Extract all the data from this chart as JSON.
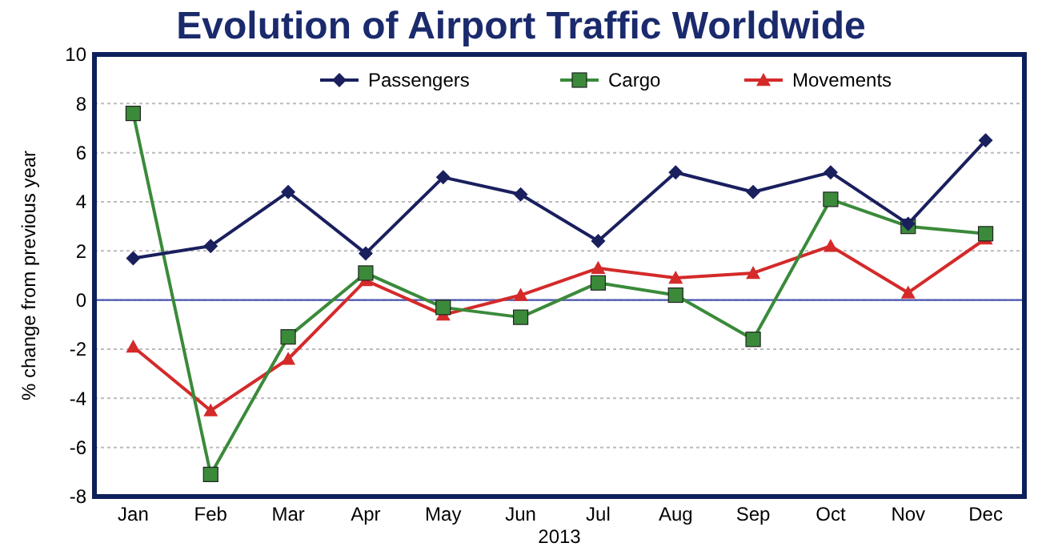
{
  "chart_data": {
    "type": "line",
    "title": "Evolution of Airport Traffic Worldwide",
    "xlabel": "2013",
    "ylabel": "% change from previous year",
    "categories": [
      "Jan",
      "Feb",
      "Mar",
      "Apr",
      "May",
      "Jun",
      "Jul",
      "Aug",
      "Sep",
      "Oct",
      "Nov",
      "Dec"
    ],
    "series": [
      {
        "name": "Passengers",
        "color": "#1a1f5e",
        "marker": "diamond",
        "values": [
          1.7,
          2.2,
          4.4,
          1.9,
          5.0,
          4.3,
          2.4,
          5.2,
          4.4,
          5.2,
          3.1,
          6.5
        ]
      },
      {
        "name": "Cargo",
        "color": "#3a8a3a",
        "marker": "square",
        "values": [
          7.6,
          -7.1,
          -1.5,
          1.1,
          -0.3,
          -0.7,
          0.7,
          0.2,
          -1.6,
          4.1,
          3.0,
          2.7
        ]
      },
      {
        "name": "Movements",
        "color": "#d42a2a",
        "marker": "triangle",
        "values": [
          -1.9,
          -4.5,
          -2.4,
          0.8,
          -0.6,
          0.2,
          1.3,
          0.9,
          1.1,
          2.2,
          0.3,
          2.5
        ]
      }
    ],
    "ylim": [
      -8,
      10
    ],
    "yticks": [
      -8,
      -6,
      -4,
      -2,
      0,
      2,
      4,
      6,
      8,
      10
    ],
    "grid": "y",
    "legend": "top",
    "ref_lines": [
      {
        "axis": "y",
        "value": 0,
        "color": "#4a55b0"
      }
    ]
  }
}
